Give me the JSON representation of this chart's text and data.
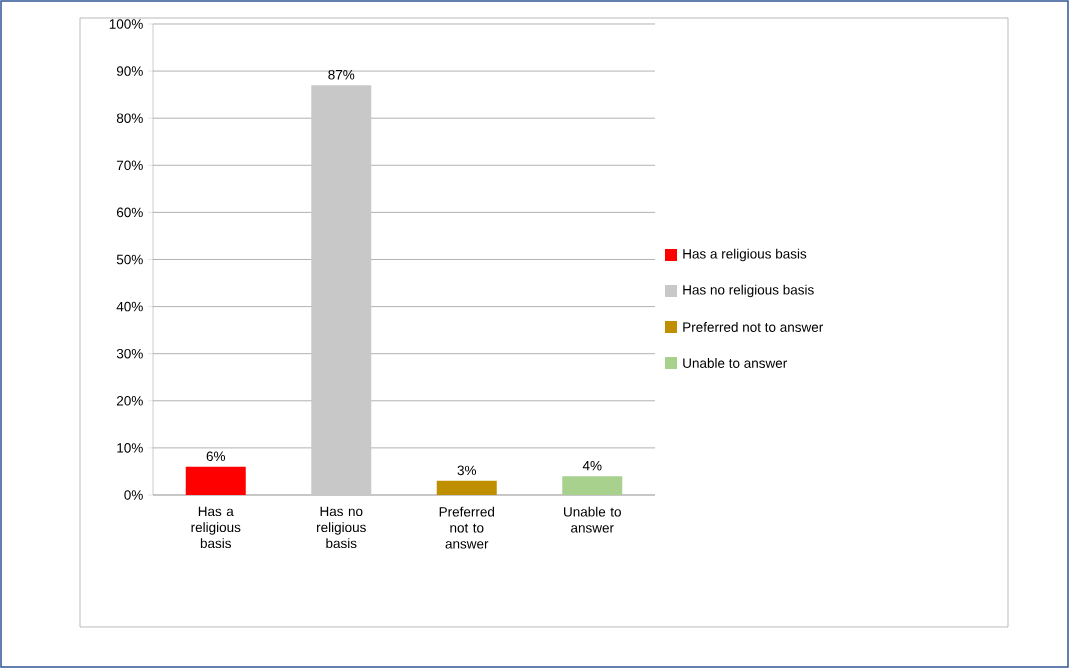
{
  "chart_data": {
    "type": "bar",
    "categories": [
      "Has a religious basis",
      "Has no religious basis",
      "Preferred not to answer",
      "Unable to answer"
    ],
    "series": [
      {
        "name": "Has a religious basis",
        "color": "#ff0000",
        "values": [
          6,
          null,
          null,
          null
        ],
        "value_labels": [
          "6%",
          null,
          null,
          null
        ]
      },
      {
        "name": "Has no religious basis",
        "color": "#c8c8c8",
        "values": [
          null,
          87,
          null,
          null
        ],
        "value_labels": [
          null,
          "87%",
          null,
          null
        ]
      },
      {
        "name": "Preferred not to answer",
        "color": "#bf8f00",
        "values": [
          null,
          null,
          3,
          null
        ],
        "value_labels": [
          null,
          null,
          "3%",
          null
        ]
      },
      {
        "name": "Unable to answer",
        "color": "#a9d18e",
        "values": [
          null,
          null,
          null,
          4
        ],
        "value_labels": [
          null,
          null,
          null,
          "4%"
        ]
      }
    ],
    "ylim": [
      0,
      100
    ],
    "yticks": [
      {
        "value": 0,
        "label": "0%"
      },
      {
        "value": 10,
        "label": "10%"
      },
      {
        "value": 20,
        "label": "20%"
      },
      {
        "value": 30,
        "label": "30%"
      },
      {
        "value": 40,
        "label": "40%"
      },
      {
        "value": 50,
        "label": "50%"
      },
      {
        "value": 60,
        "label": "60%"
      },
      {
        "value": 70,
        "label": "70%"
      },
      {
        "value": 80,
        "label": "80%"
      },
      {
        "value": 90,
        "label": "90%"
      },
      {
        "value": 100,
        "label": "100%"
      }
    ],
    "grid": "y",
    "legend": "right"
  }
}
